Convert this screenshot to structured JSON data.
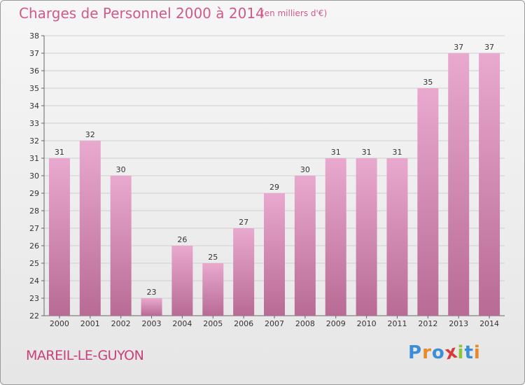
{
  "header": {
    "title": "Charges de Personnel 2000 à 2014",
    "subtitle": "(en milliers d'€)"
  },
  "footer": {
    "town": "MAREIL-LE-GUYON",
    "logo": "Proxiti",
    "logo_letters": [
      {
        "ch": "P",
        "color": "#3a8fd6"
      },
      {
        "ch": "r",
        "color": "#e8892a"
      },
      {
        "ch": "o",
        "color": "#3a8fd6"
      },
      {
        "ch": "x",
        "color": "#d63a3a"
      },
      {
        "ch": "i",
        "color": "#8ac63a"
      },
      {
        "ch": "t",
        "color": "#3a8fd6"
      },
      {
        "ch": "i",
        "color": "#e8892a"
      }
    ]
  },
  "colors": {
    "bar_top": "#e9a9cf",
    "bar_bottom": "#b86b94",
    "grid": "#cfcfcf",
    "title": "#d05a8a"
  },
  "chart_data": {
    "type": "bar",
    "title": "Charges de Personnel 2000 à 2014",
    "subtitle": "(en milliers d'€)",
    "categories": [
      "2000",
      "2001",
      "2002",
      "2003",
      "2004",
      "2005",
      "2006",
      "2007",
      "2008",
      "2009",
      "2010",
      "2011",
      "2012",
      "2013",
      "2014"
    ],
    "values": [
      31,
      32,
      30,
      23,
      26,
      25,
      27,
      29,
      30,
      31,
      31,
      31,
      35,
      37,
      37
    ],
    "ylim": [
      22,
      38
    ],
    "yticks": [
      22,
      23,
      24,
      25,
      26,
      27,
      28,
      29,
      30,
      31,
      32,
      33,
      34,
      35,
      36,
      37,
      38
    ],
    "xlabel": "",
    "ylabel": "",
    "grid": true
  }
}
